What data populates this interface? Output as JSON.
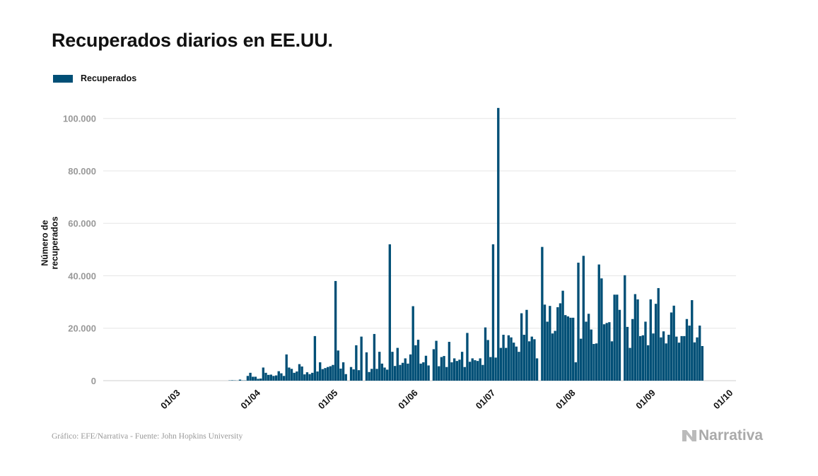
{
  "chart_data": {
    "type": "bar",
    "title": "Recuperados diarios en EE.UU.",
    "ylabel": "Número de recuperados",
    "xlabel": "",
    "legend": {
      "position": "top-left",
      "entries": [
        "Recuperados"
      ]
    },
    "grid": true,
    "ylim": [
      0,
      108000
    ],
    "xlim": [
      "31/01",
      "02/10"
    ],
    "y_ticks": [
      {
        "value": 0,
        "label": "0"
      },
      {
        "value": 20000,
        "label": "20.000"
      },
      {
        "value": 40000,
        "label": "40.000"
      },
      {
        "value": 60000,
        "label": "60.000"
      },
      {
        "value": 80000,
        "label": "80.000"
      },
      {
        "value": 100000,
        "label": "100.000"
      }
    ],
    "x_ticks": [
      "01/03",
      "01/04",
      "01/05",
      "01/06",
      "01/07",
      "01/08",
      "01/09",
      "01/10"
    ],
    "color": "#004f76",
    "series": [
      {
        "name": "Recuperados",
        "points": [
          [
            "20/03",
            100
          ],
          [
            "21/03",
            150
          ],
          [
            "22/03",
            100
          ],
          [
            "23/03",
            50
          ],
          [
            "24/03",
            400
          ],
          [
            "25/03",
            100
          ],
          [
            "26/03",
            100
          ],
          [
            "27/03",
            1800
          ],
          [
            "28/03",
            3000
          ],
          [
            "29/03",
            1500
          ],
          [
            "30/03",
            1500
          ],
          [
            "31/03",
            700
          ],
          [
            "01/04",
            800
          ],
          [
            "02/04",
            5000
          ],
          [
            "03/04",
            3000
          ],
          [
            "04/04",
            2200
          ],
          [
            "05/04",
            2300
          ],
          [
            "06/04",
            1800
          ],
          [
            "07/04",
            2000
          ],
          [
            "08/04",
            3600
          ],
          [
            "09/04",
            2800
          ],
          [
            "10/04",
            1800
          ],
          [
            "11/04",
            10000
          ],
          [
            "12/04",
            5000
          ],
          [
            "13/04",
            4500
          ],
          [
            "14/04",
            3000
          ],
          [
            "15/04",
            3500
          ],
          [
            "16/04",
            6300
          ],
          [
            "17/04",
            5400
          ],
          [
            "18/04",
            2400
          ],
          [
            "19/04",
            3200
          ],
          [
            "20/04",
            2500
          ],
          [
            "21/04",
            3000
          ],
          [
            "22/04",
            17000
          ],
          [
            "23/04",
            3500
          ],
          [
            "24/04",
            7000
          ],
          [
            "25/04",
            4400
          ],
          [
            "26/04",
            4800
          ],
          [
            "27/04",
            5200
          ],
          [
            "28/04",
            5500
          ],
          [
            "29/04",
            6000
          ],
          [
            "30/04",
            38000
          ],
          [
            "01/05",
            11500
          ],
          [
            "02/05",
            4600
          ],
          [
            "03/05",
            7000
          ],
          [
            "04/05",
            2500
          ],
          [
            "05/05",
            0
          ],
          [
            "06/05",
            5200
          ],
          [
            "07/05",
            4300
          ],
          [
            "08/05",
            13500
          ],
          [
            "09/05",
            4000
          ],
          [
            "10/05",
            16800
          ],
          [
            "11/05",
            0
          ],
          [
            "12/05",
            10800
          ],
          [
            "13/05",
            3300
          ],
          [
            "14/05",
            4500
          ],
          [
            "15/05",
            17800
          ],
          [
            "16/05",
            4500
          ],
          [
            "17/05",
            11000
          ],
          [
            "18/05",
            6500
          ],
          [
            "19/05",
            5000
          ],
          [
            "20/05",
            4200
          ],
          [
            "21/05",
            52000
          ],
          [
            "22/05",
            11000
          ],
          [
            "23/05",
            5600
          ],
          [
            "24/05",
            12500
          ],
          [
            "25/05",
            6000
          ],
          [
            "26/05",
            6800
          ],
          [
            "27/05",
            8500
          ],
          [
            "28/05",
            6500
          ],
          [
            "29/05",
            10000
          ],
          [
            "30/05",
            28400
          ],
          [
            "31/05",
            13500
          ],
          [
            "01/06",
            15600
          ],
          [
            "02/06",
            6500
          ],
          [
            "03/06",
            7000
          ],
          [
            "04/06",
            9500
          ],
          [
            "05/06",
            5800
          ],
          [
            "06/06",
            0
          ],
          [
            "07/06",
            12000
          ],
          [
            "08/06",
            15200
          ],
          [
            "09/06",
            5500
          ],
          [
            "10/06",
            9000
          ],
          [
            "11/06",
            9400
          ],
          [
            "12/06",
            5200
          ],
          [
            "13/06",
            14800
          ],
          [
            "14/06",
            7000
          ],
          [
            "15/06",
            8500
          ],
          [
            "16/06",
            7500
          ],
          [
            "17/06",
            8000
          ],
          [
            "18/06",
            11000
          ],
          [
            "19/06",
            5200
          ],
          [
            "20/06",
            18200
          ],
          [
            "21/06",
            7200
          ],
          [
            "22/06",
            8500
          ],
          [
            "23/06",
            7800
          ],
          [
            "24/06",
            7500
          ],
          [
            "25/06",
            8500
          ],
          [
            "26/06",
            6000
          ],
          [
            "27/06",
            20300
          ],
          [
            "28/06",
            15500
          ],
          [
            "29/06",
            9000
          ],
          [
            "30/06",
            52000
          ],
          [
            "01/07",
            8800
          ],
          [
            "02/07",
            104000
          ],
          [
            "03/07",
            12500
          ],
          [
            "04/07",
            17500
          ],
          [
            "05/07",
            12500
          ],
          [
            "06/07",
            17300
          ],
          [
            "07/07",
            16500
          ],
          [
            "08/07",
            14500
          ],
          [
            "09/07",
            13000
          ],
          [
            "10/07",
            11000
          ],
          [
            "11/07",
            25700
          ],
          [
            "12/07",
            17500
          ],
          [
            "13/07",
            27000
          ],
          [
            "14/07",
            15000
          ],
          [
            "15/07",
            16800
          ],
          [
            "16/07",
            15800
          ],
          [
            "17/07",
            8500
          ],
          [
            "18/07",
            0
          ],
          [
            "19/07",
            51000
          ],
          [
            "20/07",
            29000
          ],
          [
            "21/07",
            22500
          ],
          [
            "22/07",
            28500
          ],
          [
            "23/07",
            18000
          ],
          [
            "24/07",
            19000
          ],
          [
            "25/07",
            28000
          ],
          [
            "26/07",
            29500
          ],
          [
            "27/07",
            34300
          ],
          [
            "28/07",
            25000
          ],
          [
            "29/07",
            24500
          ],
          [
            "30/07",
            24000
          ],
          [
            "31/07",
            24000
          ],
          [
            "01/08",
            7000
          ],
          [
            "02/08",
            45000
          ],
          [
            "03/08",
            16000
          ],
          [
            "04/08",
            47600
          ],
          [
            "05/08",
            22500
          ],
          [
            "06/08",
            25500
          ],
          [
            "07/08",
            19500
          ],
          [
            "08/08",
            14000
          ],
          [
            "09/08",
            14200
          ],
          [
            "10/08",
            44300
          ],
          [
            "11/08",
            39000
          ],
          [
            "12/08",
            21500
          ],
          [
            "13/08",
            22000
          ],
          [
            "14/08",
            22300
          ],
          [
            "15/08",
            15000
          ],
          [
            "16/08",
            32800
          ],
          [
            "17/08",
            32800
          ],
          [
            "18/08",
            27000
          ],
          [
            "19/08",
            0
          ],
          [
            "20/08",
            40200
          ],
          [
            "21/08",
            20500
          ],
          [
            "22/08",
            12500
          ],
          [
            "23/08",
            23500
          ],
          [
            "24/08",
            33000
          ],
          [
            "25/08",
            31000
          ],
          [
            "26/08",
            17000
          ],
          [
            "27/08",
            17300
          ],
          [
            "28/08",
            22500
          ],
          [
            "29/08",
            13500
          ],
          [
            "30/08",
            31000
          ],
          [
            "31/08",
            18000
          ],
          [
            "01/09",
            29300
          ],
          [
            "02/09",
            35300
          ],
          [
            "03/09",
            16500
          ],
          [
            "04/09",
            18800
          ],
          [
            "05/09",
            14200
          ],
          [
            "06/09",
            17500
          ],
          [
            "07/09",
            26000
          ],
          [
            "08/09",
            28600
          ],
          [
            "09/09",
            16800
          ],
          [
            "10/09",
            14500
          ],
          [
            "11/09",
            17000
          ],
          [
            "12/09",
            17000
          ],
          [
            "13/09",
            23500
          ],
          [
            "14/09",
            21000
          ],
          [
            "15/09",
            30700
          ],
          [
            "16/09",
            14600
          ],
          [
            "17/09",
            16500
          ],
          [
            "18/09",
            21000
          ],
          [
            "19/09",
            13200
          ]
        ]
      }
    ]
  },
  "footer": "Gráfico: EFE/Narrativa - Fuente: John Hopkins University",
  "logo": "Narrativa"
}
